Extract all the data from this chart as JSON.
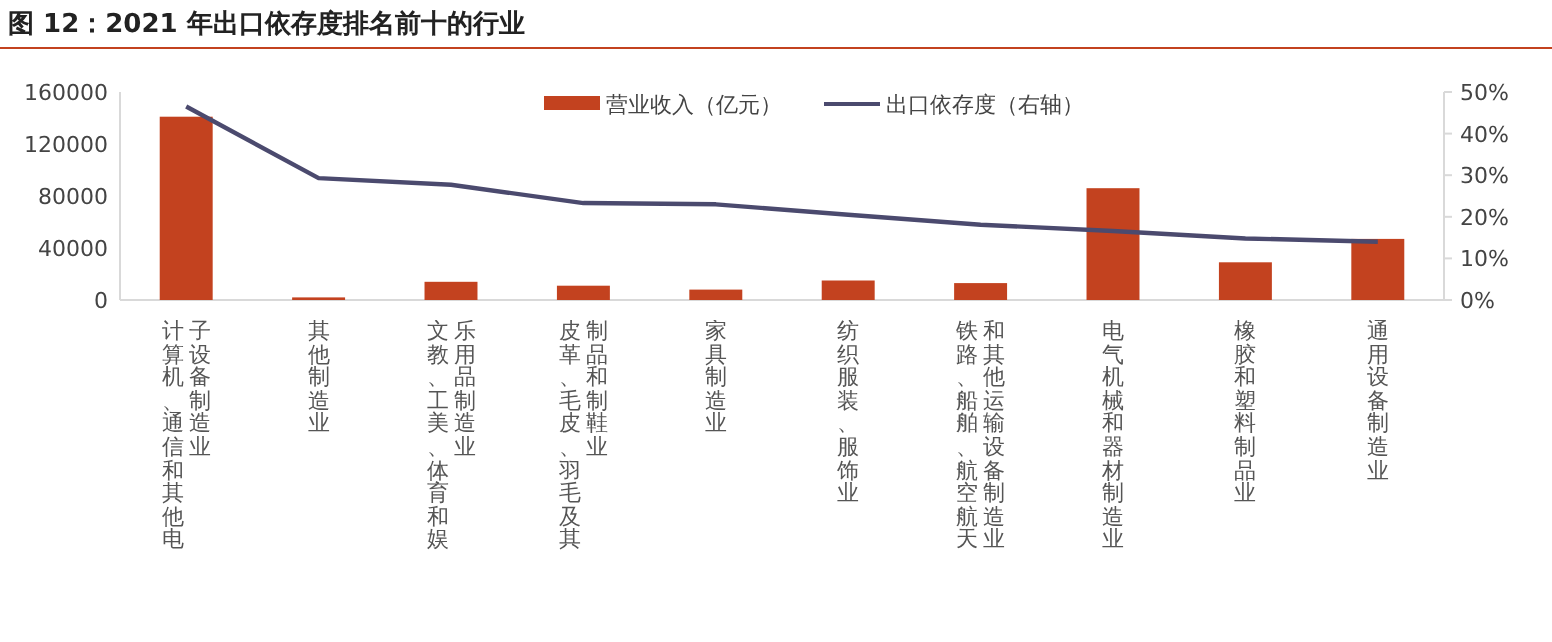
{
  "chart_data": {
    "type": "bar",
    "title": "图 12：2021 年出口依存度排名前十的行业",
    "categories": [
      "计算机、通信和其他电子设备制造业",
      "其他制造业",
      "文教、工美、体育和娱乐用品制造业",
      "皮革、毛皮、羽毛及其制品和制鞋业",
      "家具制造业",
      "纺织服装、服饰业",
      "铁路、船舶、航空航天和其他运输设备制造业",
      "电气机械和器材制造业",
      "橡胶和塑料制品业",
      "通用设备制造业"
    ],
    "series": [
      {
        "name": "营业收入（亿元）",
        "color": "#c3421f",
        "values": [
          141000,
          2000,
          14000,
          11000,
          8000,
          15000,
          13000,
          86000,
          29000,
          47000
        ]
      },
      {
        "name": "出口依存度（右轴）",
        "type": "line",
        "axis": "y2",
        "color": "#4b4a6e",
        "values": [
          46.5,
          29.3,
          27.7,
          23.3,
          23,
          20.5,
          18.1,
          16.6,
          14.8,
          14
        ]
      }
    ],
    "ylim": [
      0,
      160000
    ],
    "yticks": [
      0,
      40000,
      80000,
      120000,
      160000
    ],
    "y2lim": [
      0,
      50
    ],
    "y2ticks": [
      {
        "value": 0,
        "label": "0%"
      },
      {
        "value": 10,
        "label": "10%"
      },
      {
        "value": 20,
        "label": "20%"
      },
      {
        "value": 30,
        "label": "30%"
      },
      {
        "value": 40,
        "label": "40%"
      },
      {
        "value": 50,
        "label": "50%"
      }
    ],
    "legend": "top right",
    "grid": false,
    "marker": "none",
    "line_style": "solid"
  }
}
